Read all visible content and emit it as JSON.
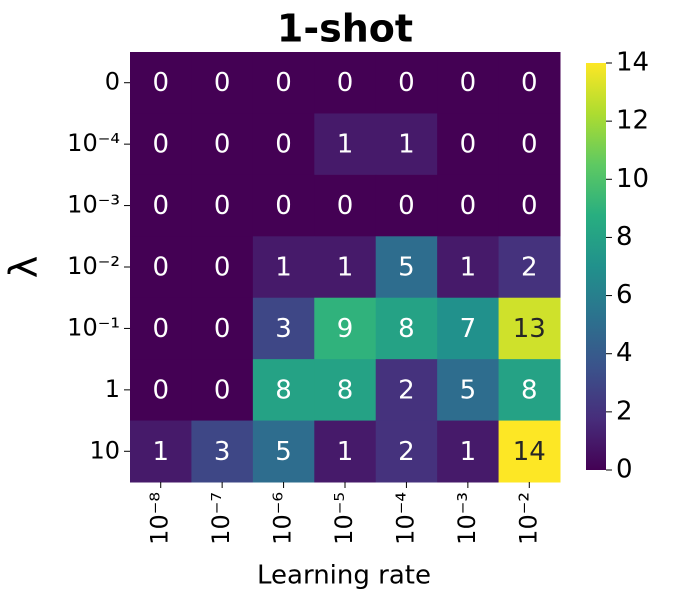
{
  "chart_data": {
    "type": "heatmap",
    "title": "1-shot",
    "x_label": "Learning rate",
    "y_label": "λ",
    "x_categories": [
      "10⁻⁸",
      "10⁻⁷",
      "10⁻⁶",
      "10⁻⁵",
      "10⁻⁴",
      "10⁻³",
      "10⁻²"
    ],
    "y_categories": [
      "0",
      "10⁻⁴",
      "10⁻³",
      "10⁻²",
      "10⁻¹",
      "1",
      "10"
    ],
    "values": [
      [
        0,
        0,
        0,
        0,
        0,
        0,
        0
      ],
      [
        0,
        0,
        0,
        1,
        1,
        0,
        0
      ],
      [
        0,
        0,
        0,
        0,
        0,
        0,
        0
      ],
      [
        0,
        0,
        1,
        1,
        5,
        1,
        2
      ],
      [
        0,
        0,
        3,
        9,
        8,
        7,
        13
      ],
      [
        0,
        0,
        8,
        8,
        2,
        5,
        8
      ],
      [
        1,
        3,
        5,
        1,
        2,
        1,
        14
      ]
    ],
    "colormap": "viridis",
    "clim": [
      0,
      14
    ],
    "cticks": [
      0,
      2,
      4,
      6,
      8,
      10,
      12,
      14
    ]
  }
}
